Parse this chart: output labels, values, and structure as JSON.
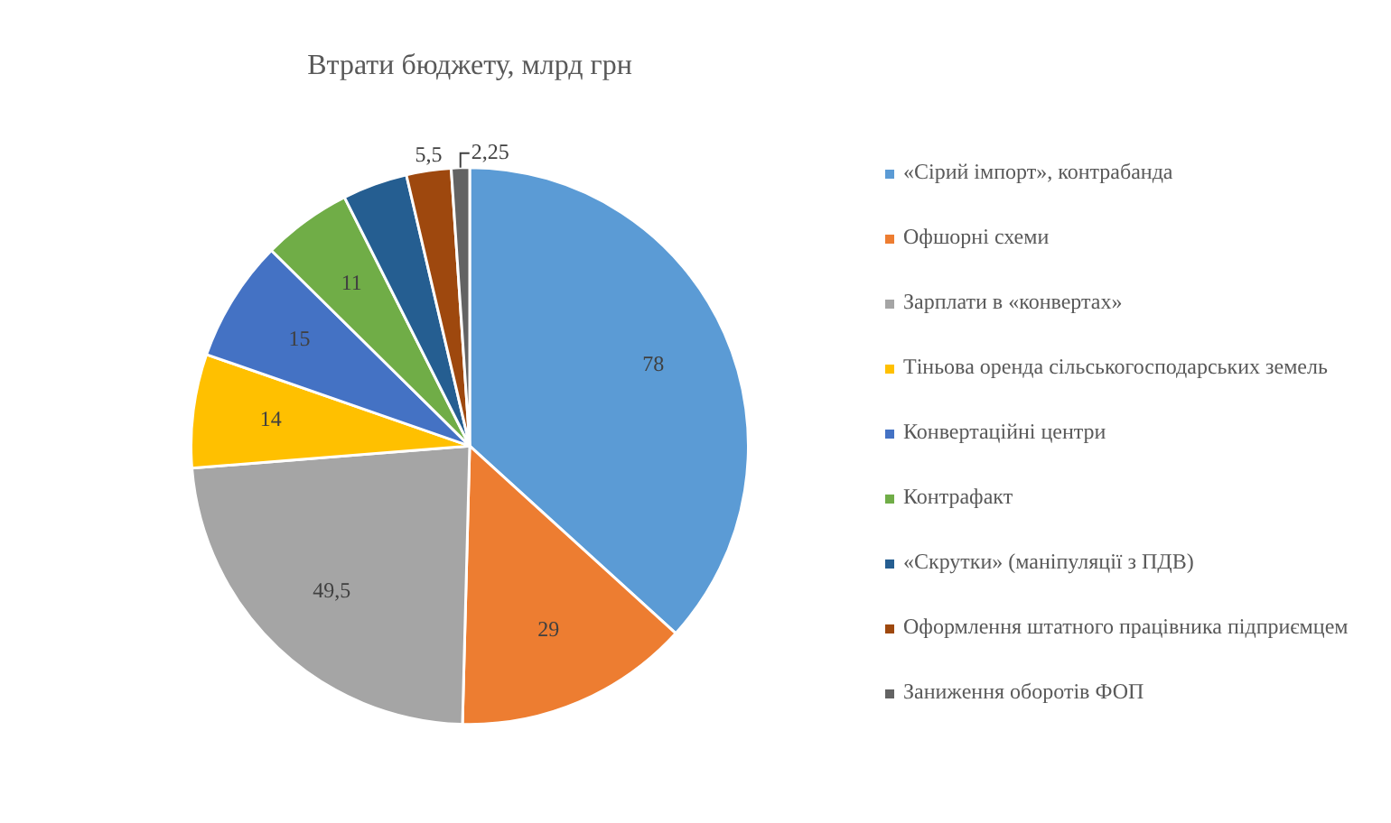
{
  "chart_data": {
    "type": "pie",
    "title": "Втрати бюджету, млрд грн",
    "categories": [
      "«Сірий імпорт», контрабанда",
      "Офшорні схеми",
      "Зарплати в «конвертах»",
      "Тіньова оренда сільськогосподарських земель",
      "Конвертаційні центри",
      "Контрафакт",
      "«Скрутки» (маніпуляції з ПДВ)",
      "Оформлення штатного працівника підприємцем",
      "Заниження оборотів ФОП"
    ],
    "values": [
      78,
      29,
      49.5,
      14,
      15,
      11,
      8,
      5.5,
      2.25
    ],
    "value_labels": [
      "78",
      "29",
      "49,5",
      "14",
      "15",
      "11",
      null,
      "5,5",
      "2,25"
    ],
    "colors": [
      "#5b9bd5",
      "#ed7d31",
      "#a5a5a5",
      "#ffc000",
      "#4472c4",
      "#70ad47",
      "#255e91",
      "#9e480e",
      "#636363"
    ],
    "legend": "right"
  }
}
